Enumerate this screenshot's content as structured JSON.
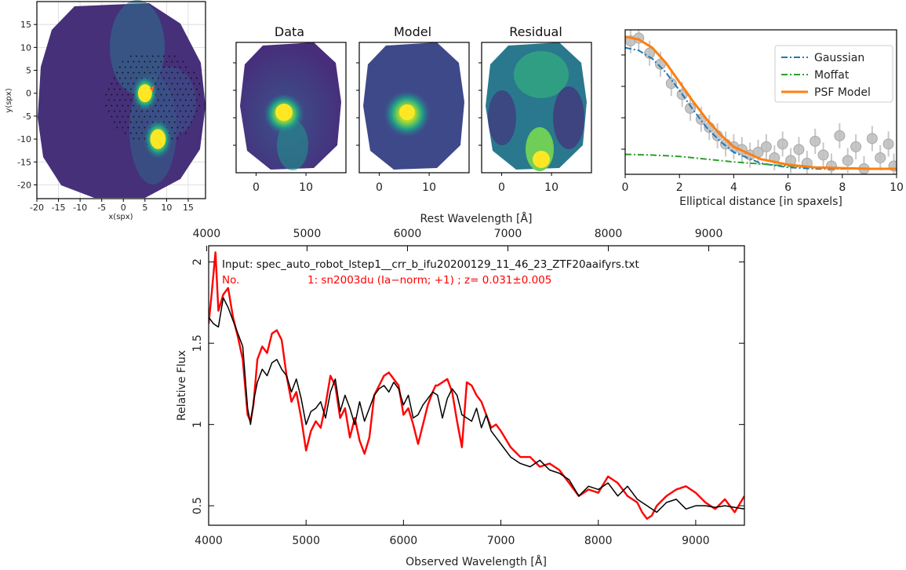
{
  "chart_data": [
    {
      "type": "scatter",
      "panel": "ifu-cube-map",
      "xlabel": "x(spx)",
      "ylabel": "y(spx)",
      "xlim": [
        -20,
        19
      ],
      "ylim": [
        -23,
        20
      ],
      "xticks": [
        -20,
        -15,
        -10,
        -5,
        0,
        5,
        10,
        15
      ],
      "yticks": [
        -20,
        -15,
        -10,
        -5,
        0,
        5,
        10,
        15
      ],
      "grid": true,
      "sources": [
        {
          "x": 5.0,
          "y": 0.0,
          "relative_brightness": 0.9
        },
        {
          "x": 8.0,
          "y": -10.0,
          "relative_brightness": 1.0
        }
      ],
      "fit_region_center": {
        "x": 7,
        "y": -1
      },
      "colormap": "viridis"
    },
    {
      "type": "heatmap",
      "panel": "psf-data",
      "title": "Data",
      "xticks": [
        0,
        10
      ],
      "xlim": [
        -4,
        18
      ],
      "peak": {
        "x": 6,
        "y": 0
      },
      "colormap": "viridis"
    },
    {
      "type": "heatmap",
      "panel": "psf-model",
      "title": "Model",
      "xticks": [
        0,
        10
      ],
      "xlim": [
        -4,
        18
      ],
      "peak": {
        "x": 6,
        "y": 0
      },
      "colormap": "viridis"
    },
    {
      "type": "heatmap",
      "panel": "psf-residual",
      "title": "Residual",
      "xticks": [
        0,
        10
      ],
      "xlim": [
        -4,
        18
      ],
      "peak": {
        "x": 8,
        "y": -10
      },
      "colormap": "viridis"
    },
    {
      "type": "line",
      "panel": "psf-profile",
      "xlabel": "Elliptical distance [in spaxels]",
      "xlim": [
        0,
        10
      ],
      "ylim": [
        0,
        1.05
      ],
      "xticks": [
        0,
        2,
        4,
        6,
        8,
        10
      ],
      "legend_position": "top-right",
      "series": [
        {
          "name": "Gaussian",
          "color": "#1f77b4",
          "style": "dash-dot",
          "x": [
            0,
            0.5,
            1,
            1.5,
            2,
            2.5,
            3,
            3.5,
            4,
            5,
            6,
            7,
            8,
            9,
            10
          ],
          "y": [
            0.92,
            0.9,
            0.84,
            0.74,
            0.61,
            0.47,
            0.34,
            0.24,
            0.16,
            0.08,
            0.05,
            0.04,
            0.04,
            0.04,
            0.04
          ]
        },
        {
          "name": "Moffat",
          "color": "#2ca02c",
          "style": "dash-dot",
          "x": [
            0,
            1,
            2,
            3,
            4,
            5,
            6,
            7,
            8,
            9,
            10
          ],
          "y": [
            0.145,
            0.14,
            0.13,
            0.11,
            0.09,
            0.075,
            0.06,
            0.05,
            0.045,
            0.04,
            0.04
          ]
        },
        {
          "name": "PSF Model",
          "color": "#ff7f0e",
          "style": "solid",
          "x": [
            0,
            0.5,
            1,
            1.5,
            2,
            2.5,
            3,
            3.5,
            4,
            5,
            6,
            7,
            8,
            9,
            10
          ],
          "y": [
            1.0,
            0.98,
            0.92,
            0.81,
            0.67,
            0.53,
            0.4,
            0.29,
            0.2,
            0.11,
            0.07,
            0.05,
            0.045,
            0.04,
            0.04
          ]
        },
        {
          "name": "data",
          "color": "#aaaaaa",
          "style": "markers",
          "x": [
            0.2,
            0.5,
            0.9,
            1.3,
            1.7,
            2.1,
            2.4,
            2.8,
            3.1,
            3.4,
            3.7,
            4.0,
            4.3,
            4.6,
            4.9,
            5.2,
            5.5,
            5.8,
            6.1,
            6.4,
            6.7,
            7.0,
            7.3,
            7.6,
            7.9,
            8.2,
            8.5,
            8.8,
            9.1,
            9.4,
            9.7,
            9.9
          ],
          "y": [
            0.97,
            0.99,
            0.88,
            0.8,
            0.66,
            0.58,
            0.48,
            0.4,
            0.34,
            0.28,
            0.22,
            0.2,
            0.18,
            0.14,
            0.16,
            0.2,
            0.12,
            0.22,
            0.1,
            0.18,
            0.08,
            0.24,
            0.14,
            0.06,
            0.28,
            0.1,
            0.2,
            0.04,
            0.26,
            0.12,
            0.22,
            0.06
          ]
        }
      ]
    },
    {
      "type": "line",
      "panel": "spectrum",
      "xlabel": "Observed Wavelength [Å]",
      "x2label": "Rest Wavelength [Å]",
      "ylabel": "Relative Flux",
      "xlim": [
        4000,
        9500
      ],
      "ylim": [
        0.38,
        2.1
      ],
      "xticks": [
        4000,
        5000,
        6000,
        7000,
        8000,
        9000
      ],
      "x2ticks": [
        4000,
        5000,
        6000,
        7000,
        8000,
        9000
      ],
      "yticks": [
        0.5,
        1,
        1.5,
        2
      ],
      "redshift": 0.031,
      "annotations": {
        "input_line": "Input: spec_auto_robot_lstep1__crr_b_ifu20200129_11_46_23_ZTF20aaifyrs.txt",
        "match_no": "No.",
        "match_line": "1: sn2003du (Ia−norm; +1) ; z= 0.031±0.005"
      },
      "series": [
        {
          "name": "Input",
          "color": "#000000",
          "x": [
            4000,
            4050,
            4100,
            4150,
            4200,
            4250,
            4300,
            4350,
            4400,
            4430,
            4460,
            4500,
            4550,
            4600,
            4650,
            4700,
            4750,
            4800,
            4850,
            4900,
            4950,
            5000,
            5050,
            5100,
            5150,
            5200,
            5250,
            5300,
            5350,
            5400,
            5450,
            5500,
            5550,
            5600,
            5650,
            5700,
            5750,
            5800,
            5850,
            5900,
            5950,
            6000,
            6050,
            6100,
            6150,
            6200,
            6250,
            6300,
            6350,
            6400,
            6450,
            6500,
            6550,
            6600,
            6650,
            6700,
            6750,
            6800,
            6850,
            6900,
            6950,
            7000,
            7100,
            7200,
            7300,
            7400,
            7500,
            7600,
            7700,
            7800,
            7900,
            8000,
            8100,
            8200,
            8300,
            8400,
            8500,
            8600,
            8700,
            8800,
            8900,
            9000,
            9100,
            9200,
            9300,
            9400,
            9500
          ],
          "y": [
            1.66,
            1.62,
            1.6,
            1.78,
            1.72,
            1.64,
            1.56,
            1.48,
            1.1,
            1.0,
            1.14,
            1.26,
            1.34,
            1.3,
            1.38,
            1.4,
            1.34,
            1.3,
            1.2,
            1.28,
            1.16,
            1.0,
            1.08,
            1.1,
            1.14,
            1.04,
            1.2,
            1.28,
            1.08,
            1.18,
            1.1,
            1.0,
            1.14,
            1.02,
            1.1,
            1.18,
            1.22,
            1.24,
            1.2,
            1.26,
            1.22,
            1.12,
            1.18,
            1.04,
            1.06,
            1.12,
            1.16,
            1.2,
            1.18,
            1.04,
            1.16,
            1.22,
            1.18,
            1.06,
            1.04,
            1.02,
            1.1,
            0.98,
            1.06,
            0.96,
            0.92,
            0.88,
            0.8,
            0.76,
            0.74,
            0.78,
            0.72,
            0.7,
            0.66,
            0.56,
            0.62,
            0.6,
            0.64,
            0.56,
            0.62,
            0.54,
            0.5,
            0.46,
            0.52,
            0.54,
            0.48,
            0.5,
            0.5,
            0.49,
            0.5,
            0.49,
            0.48
          ]
        },
        {
          "name": "sn2003du",
          "color": "#ff0000",
          "x": [
            4000,
            4030,
            4070,
            4100,
            4150,
            4200,
            4250,
            4300,
            4350,
            4400,
            4430,
            4460,
            4500,
            4550,
            4600,
            4650,
            4700,
            4750,
            4800,
            4850,
            4900,
            4950,
            5000,
            5050,
            5100,
            5150,
            5200,
            5250,
            5300,
            5350,
            5400,
            5450,
            5500,
            5550,
            5600,
            5650,
            5700,
            5750,
            5800,
            5850,
            5900,
            5950,
            6000,
            6050,
            6100,
            6150,
            6200,
            6250,
            6300,
            6330,
            6350,
            6400,
            6450,
            6500,
            6550,
            6600,
            6650,
            6700,
            6750,
            6800,
            6850,
            6900,
            6950,
            7000,
            7100,
            7200,
            7300,
            7400,
            7500,
            7600,
            7700,
            7800,
            7900,
            8000,
            8100,
            8200,
            8300,
            8400,
            8450,
            8500,
            8550,
            8600,
            8700,
            8800,
            8900,
            9000,
            9100,
            9200,
            9300,
            9400,
            9500
          ],
          "y": [
            1.62,
            1.8,
            2.06,
            1.7,
            1.8,
            1.84,
            1.66,
            1.54,
            1.4,
            1.06,
            1.02,
            1.12,
            1.4,
            1.48,
            1.44,
            1.56,
            1.58,
            1.52,
            1.3,
            1.14,
            1.2,
            1.04,
            0.84,
            0.96,
            1.02,
            0.98,
            1.12,
            1.3,
            1.24,
            1.04,
            1.1,
            0.92,
            1.04,
            0.9,
            0.82,
            0.92,
            1.18,
            1.24,
            1.3,
            1.32,
            1.28,
            1.24,
            1.06,
            1.1,
            1.0,
            0.88,
            1.0,
            1.12,
            1.2,
            1.24,
            1.24,
            1.26,
            1.28,
            1.2,
            1.02,
            0.86,
            1.26,
            1.24,
            1.18,
            1.14,
            1.06,
            0.98,
            1.0,
            0.96,
            0.86,
            0.8,
            0.8,
            0.74,
            0.76,
            0.72,
            0.64,
            0.56,
            0.6,
            0.58,
            0.68,
            0.64,
            0.56,
            0.52,
            0.46,
            0.42,
            0.44,
            0.5,
            0.56,
            0.6,
            0.62,
            0.58,
            0.52,
            0.48,
            0.54,
            0.46,
            0.56
          ]
        }
      ]
    }
  ]
}
